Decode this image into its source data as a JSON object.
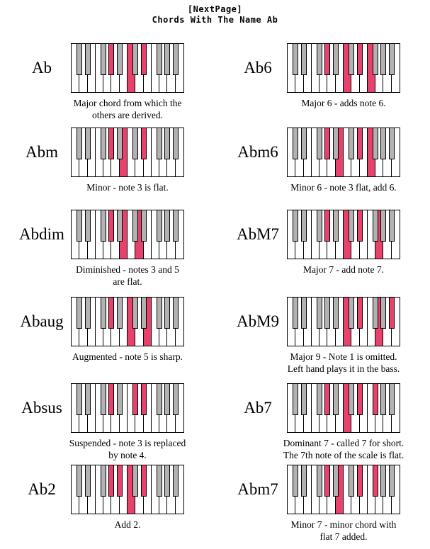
{
  "header": {
    "line1": "[NextPage]",
    "line2": "Chords With The Name Ab"
  },
  "colors": {
    "highlight_pink": "#e8416b",
    "inactive_black_key_gray": "#b2b2b2",
    "key_border": "#000000",
    "background": "#ffffff"
  },
  "chart_data": {
    "type": "piano-chord-diagrams",
    "title": "Chords With The Name Ab",
    "keyboard": {
      "white_key_count": 14,
      "octaves": 2,
      "white_note_names": [
        "C",
        "D",
        "E",
        "F",
        "G",
        "A",
        "B",
        "C",
        "D",
        "E",
        "F",
        "G",
        "A",
        "B"
      ],
      "black_key_boundaries": [
        1,
        2,
        4,
        5,
        6,
        8,
        9,
        11,
        12,
        13
      ]
    },
    "chords": [
      {
        "name": "Ab",
        "description": "Major chord from which the\nothers are derived.",
        "highlighted_notes": [
          "Ab",
          "C",
          "Eb"
        ],
        "highlighted_white_keys": [
          7
        ],
        "highlighted_black_keys": [
          5,
          9
        ]
      },
      {
        "name": "Ab6",
        "description": "Major 6 - adds note 6.",
        "highlighted_notes": [
          "Ab",
          "C",
          "Eb",
          "F"
        ],
        "highlighted_white_keys": [
          7,
          10
        ],
        "highlighted_black_keys": [
          5,
          9
        ]
      },
      {
        "name": "Abm",
        "description": "Minor - note 3 is flat.",
        "highlighted_notes": [
          "Ab",
          "Cb",
          "Eb"
        ],
        "highlighted_white_keys": [
          6
        ],
        "highlighted_black_keys": [
          5,
          9
        ]
      },
      {
        "name": "Abm6",
        "description": "Minor 6 - note 3 flat, add 6.",
        "highlighted_notes": [
          "Ab",
          "Cb",
          "Eb",
          "F"
        ],
        "highlighted_white_keys": [
          6,
          10
        ],
        "highlighted_black_keys": [
          5,
          9
        ]
      },
      {
        "name": "Abdim",
        "description": "Diminished - notes 3 and 5\nare flat.",
        "highlighted_notes": [
          "Ab",
          "Cb",
          "Ebb"
        ],
        "highlighted_white_keys": [
          6,
          8
        ],
        "highlighted_black_keys": [
          5
        ]
      },
      {
        "name": "AbM7",
        "description": "Major 7 - add note 7.",
        "highlighted_notes": [
          "Ab",
          "C",
          "Eb",
          "G"
        ],
        "highlighted_white_keys": [
          7,
          11
        ],
        "highlighted_black_keys": [
          5,
          9
        ]
      },
      {
        "name": "Abaug",
        "description": "Augmented - note 5 is sharp.",
        "highlighted_notes": [
          "Ab",
          "C",
          "E"
        ],
        "highlighted_white_keys": [
          7,
          9
        ],
        "highlighted_black_keys": [
          5
        ]
      },
      {
        "name": "AbM9",
        "description": "Major 9 - Note 1 is omitted.\nLeft hand plays it in the bass.",
        "highlighted_notes": [
          "C",
          "Eb",
          "G",
          "Bb"
        ],
        "highlighted_white_keys": [
          7,
          11
        ],
        "highlighted_black_keys": [
          9,
          13
        ]
      },
      {
        "name": "Absus",
        "description": "Suspended - note 3 is replaced\nby note 4.",
        "highlighted_notes": [
          "Ab",
          "Db",
          "Eb"
        ],
        "highlighted_white_keys": [],
        "highlighted_black_keys": [
          5,
          8,
          9
        ]
      },
      {
        "name": "Ab7",
        "description": "Dominant 7 - called 7 for short.\nThe 7th note of the scale is flat.",
        "highlighted_notes": [
          "Ab",
          "C",
          "Eb",
          "Gb"
        ],
        "highlighted_white_keys": [
          7
        ],
        "highlighted_black_keys": [
          5,
          9,
          11
        ]
      },
      {
        "name": "Ab2",
        "description": "Add 2.",
        "highlighted_notes": [
          "Ab",
          "Bb",
          "C",
          "Eb"
        ],
        "highlighted_white_keys": [
          7
        ],
        "highlighted_black_keys": [
          5,
          6,
          9
        ]
      },
      {
        "name": "Abm7",
        "description": "Minor 7 - minor chord with\nflat 7 added.",
        "highlighted_notes": [
          "Ab",
          "Cb",
          "Eb",
          "Gb"
        ],
        "highlighted_white_keys": [
          6
        ],
        "highlighted_black_keys": [
          5,
          9,
          11
        ]
      }
    ]
  },
  "layout_note": ""
}
